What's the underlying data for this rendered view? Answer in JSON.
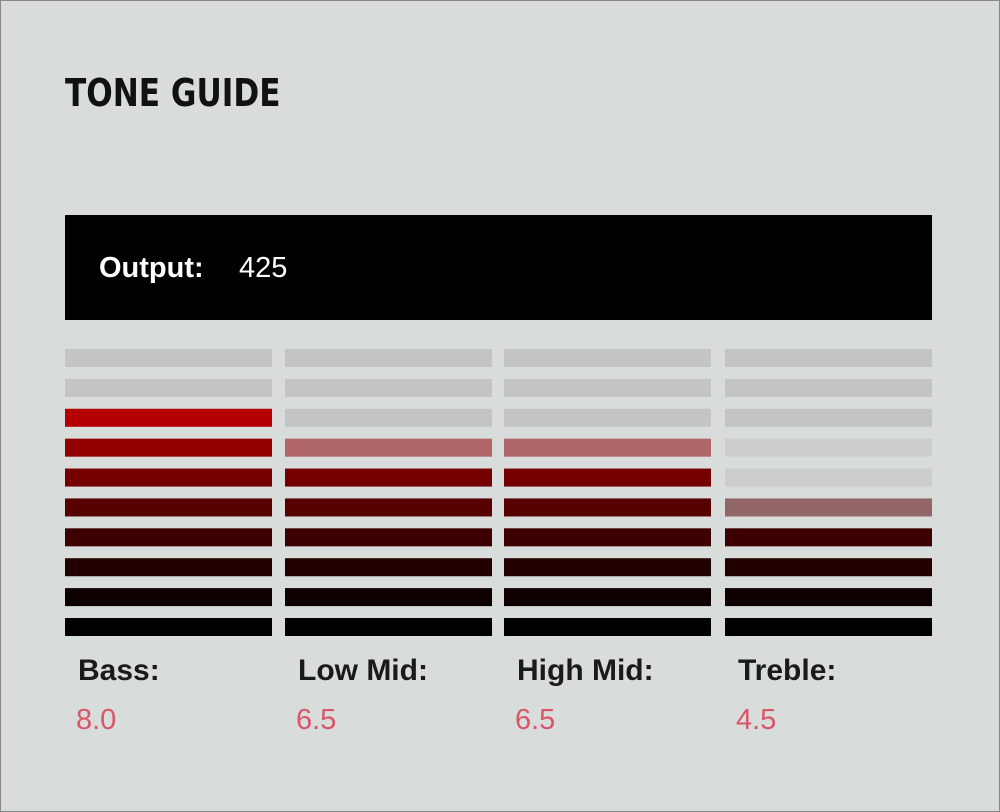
{
  "header": {
    "title": "TONE GUIDE"
  },
  "output": {
    "label": "Output:",
    "value": 425
  },
  "scale_max": 10,
  "bands": [
    {
      "label": "Bass:",
      "value": 8,
      "value_label": "8.0"
    },
    {
      "label": "Low Mid:",
      "value": 6.5,
      "value_label": "6.5"
    },
    {
      "label": "High Mid:",
      "value": 6.5,
      "value_label": "6.5"
    },
    {
      "label": "Treble:",
      "value": 4.5,
      "value_label": "4.5"
    }
  ]
}
